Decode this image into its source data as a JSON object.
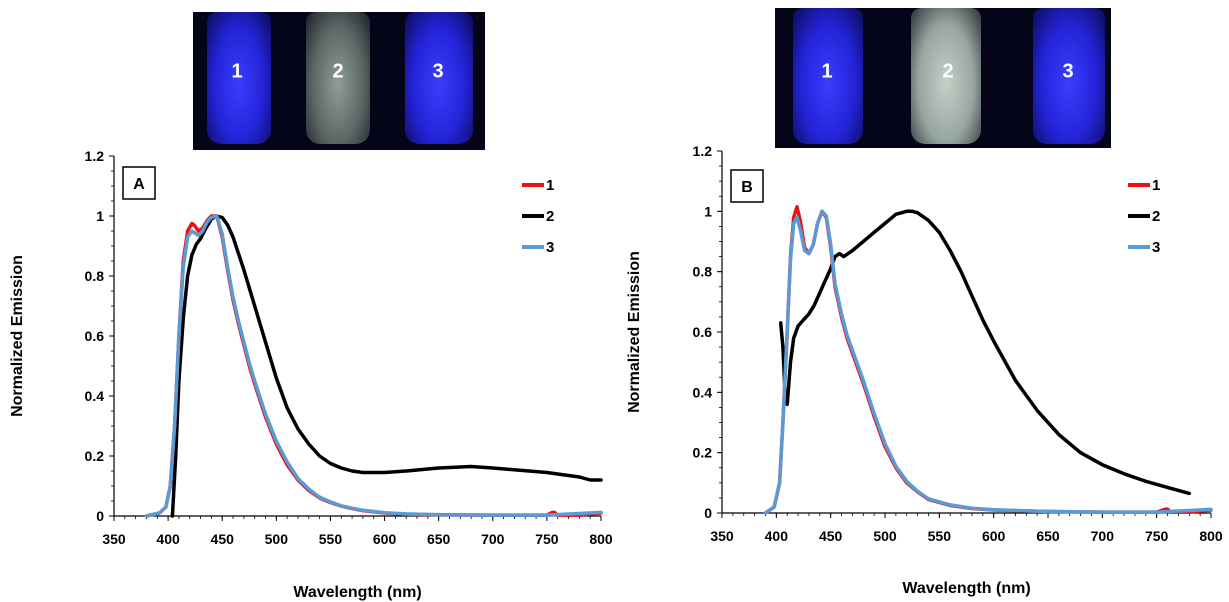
{
  "photos": [
    {
      "vials": [
        {
          "label": "1",
          "tone": "blue"
        },
        {
          "label": "2",
          "tone": "clear"
        },
        {
          "label": "3",
          "tone": "blue"
        }
      ]
    },
    {
      "vials": [
        {
          "label": "1",
          "tone": "blue"
        },
        {
          "label": "2",
          "tone": "clear"
        },
        {
          "label": "3",
          "tone": "blue"
        }
      ]
    }
  ],
  "colors": {
    "series_1": "#ee1111",
    "series_2": "#000000",
    "series_3": "#5b9bd5",
    "vial_blue": "#2a2cff",
    "vial_clear": "#a8b8b0"
  },
  "chart_data": [
    {
      "type": "line",
      "panel_label": "A",
      "xlabel": "Wavelength (nm)",
      "ylabel": "Normalized Emission",
      "xlim": [
        350,
        800
      ],
      "ylim": [
        0,
        1.2
      ],
      "xticks": [
        350,
        400,
        450,
        500,
        550,
        600,
        650,
        700,
        750,
        800
      ],
      "yticks": [
        0,
        0.2,
        0.4,
        0.6,
        0.8,
        1,
        1.2
      ],
      "ytick_labels": [
        "0",
        "0.2",
        "0.4",
        "0.6",
        "0.8",
        "1",
        "1.2"
      ],
      "grid": false,
      "legend": "top-right",
      "series": [
        {
          "name": "1",
          "color": "#ee1111",
          "x": [
            380,
            392,
            398,
            402,
            406,
            410,
            414,
            418,
            422,
            424,
            428,
            432,
            436,
            440,
            445,
            450,
            455,
            460,
            465,
            470,
            475,
            480,
            490,
            500,
            510,
            520,
            530,
            540,
            550,
            560,
            570,
            580,
            600,
            620,
            650,
            700,
            750,
            755,
            757,
            760,
            780,
            800
          ],
          "y": [
            0,
            0.01,
            0.03,
            0.1,
            0.3,
            0.6,
            0.85,
            0.95,
            0.975,
            0.97,
            0.95,
            0.96,
            0.985,
            1.0,
            1.0,
            0.93,
            0.82,
            0.72,
            0.64,
            0.57,
            0.5,
            0.44,
            0.33,
            0.24,
            0.17,
            0.12,
            0.085,
            0.06,
            0.045,
            0.033,
            0.025,
            0.018,
            0.01,
            0.006,
            0.004,
            0.003,
            0.003,
            0.012,
            0.012,
            0.003,
            0.003,
            0.01
          ]
        },
        {
          "name": "2",
          "color": "#000000",
          "x": [
            404,
            407,
            410,
            414,
            418,
            422,
            426,
            430,
            435,
            440,
            445,
            450,
            455,
            460,
            470,
            480,
            490,
            500,
            510,
            520,
            530,
            540,
            550,
            560,
            570,
            580,
            600,
            620,
            650,
            680,
            700,
            750,
            780,
            790,
            800
          ],
          "y": [
            0,
            0.2,
            0.45,
            0.66,
            0.8,
            0.87,
            0.905,
            0.925,
            0.96,
            0.99,
            1.0,
            0.995,
            0.97,
            0.93,
            0.82,
            0.7,
            0.58,
            0.46,
            0.36,
            0.29,
            0.24,
            0.2,
            0.175,
            0.16,
            0.15,
            0.145,
            0.145,
            0.15,
            0.16,
            0.165,
            0.16,
            0.145,
            0.13,
            0.12,
            0.12
          ]
        },
        {
          "name": "3",
          "color": "#5b9bd5",
          "x": [
            380,
            392,
            398,
            402,
            406,
            410,
            414,
            418,
            422,
            424,
            428,
            432,
            436,
            440,
            445,
            450,
            455,
            460,
            465,
            470,
            475,
            480,
            490,
            500,
            510,
            520,
            530,
            540,
            550,
            560,
            570,
            580,
            600,
            620,
            650,
            700,
            750,
            800
          ],
          "y": [
            0,
            0.01,
            0.03,
            0.1,
            0.3,
            0.6,
            0.83,
            0.93,
            0.95,
            0.945,
            0.935,
            0.95,
            0.98,
            0.995,
            1.0,
            0.94,
            0.83,
            0.73,
            0.65,
            0.58,
            0.51,
            0.45,
            0.34,
            0.25,
            0.18,
            0.125,
            0.09,
            0.063,
            0.047,
            0.034,
            0.026,
            0.019,
            0.011,
            0.007,
            0.004,
            0.003,
            0.003,
            0.012
          ]
        }
      ]
    },
    {
      "type": "line",
      "panel_label": "B",
      "xlabel": "Wavelength (nm)",
      "ylabel": "Normalized Emission",
      "xlim": [
        350,
        800
      ],
      "ylim": [
        0,
        1.2
      ],
      "xticks": [
        350,
        400,
        450,
        500,
        550,
        600,
        650,
        700,
        750,
        800
      ],
      "yticks": [
        0,
        0.2,
        0.4,
        0.6,
        0.8,
        1,
        1.2
      ],
      "ytick_labels": [
        "0",
        "0.2",
        "0.4",
        "0.6",
        "0.8",
        "1",
        "1.2"
      ],
      "grid": false,
      "legend": "top-right",
      "series": [
        {
          "name": "1",
          "color": "#ee1111",
          "x": [
            390,
            398,
            403,
            406,
            410,
            413,
            416,
            419,
            422,
            426,
            430,
            434,
            438,
            442,
            446,
            450,
            454,
            460,
            465,
            470,
            480,
            490,
            500,
            510,
            520,
            530,
            540,
            560,
            580,
            600,
            650,
            700,
            750,
            758,
            760,
            763,
            780,
            800
          ],
          "y": [
            0,
            0.02,
            0.1,
            0.3,
            0.6,
            0.85,
            0.98,
            1.015,
            0.97,
            0.88,
            0.86,
            0.89,
            0.96,
            1.0,
            0.98,
            0.88,
            0.75,
            0.65,
            0.58,
            0.53,
            0.43,
            0.32,
            0.22,
            0.15,
            0.1,
            0.07,
            0.045,
            0.025,
            0.015,
            0.01,
            0.005,
            0.003,
            0.003,
            0.013,
            0.013,
            0.003,
            0.003,
            0.01
          ]
        },
        {
          "name": "2",
          "color": "#000000",
          "x": [
            404,
            406,
            408,
            410,
            413,
            416,
            420,
            425,
            430,
            435,
            440,
            445,
            450,
            454,
            458,
            462,
            470,
            480,
            490,
            500,
            510,
            520,
            525,
            530,
            540,
            550,
            560,
            570,
            580,
            590,
            600,
            620,
            640,
            660,
            680,
            700,
            720,
            740,
            760,
            770,
            780
          ],
          "y": [
            0.63,
            0.55,
            0.4,
            0.36,
            0.5,
            0.58,
            0.62,
            0.64,
            0.66,
            0.69,
            0.73,
            0.77,
            0.81,
            0.85,
            0.86,
            0.85,
            0.87,
            0.9,
            0.93,
            0.96,
            0.99,
            1.0,
            1.0,
            0.995,
            0.97,
            0.93,
            0.87,
            0.8,
            0.72,
            0.64,
            0.57,
            0.44,
            0.34,
            0.26,
            0.2,
            0.16,
            0.13,
            0.105,
            0.085,
            0.075,
            0.065
          ]
        },
        {
          "name": "3",
          "color": "#5b9bd5",
          "x": [
            390,
            398,
            403,
            406,
            410,
            413,
            416,
            419,
            422,
            426,
            430,
            434,
            438,
            442,
            446,
            450,
            454,
            460,
            465,
            470,
            480,
            490,
            500,
            510,
            520,
            530,
            540,
            560,
            580,
            600,
            650,
            700,
            750,
            800
          ],
          "y": [
            0,
            0.02,
            0.1,
            0.3,
            0.6,
            0.84,
            0.96,
            0.98,
            0.94,
            0.87,
            0.86,
            0.89,
            0.96,
            1.0,
            0.985,
            0.89,
            0.76,
            0.66,
            0.59,
            0.54,
            0.44,
            0.33,
            0.23,
            0.155,
            0.105,
            0.072,
            0.047,
            0.027,
            0.016,
            0.011,
            0.005,
            0.003,
            0.003,
            0.012
          ]
        }
      ]
    }
  ]
}
